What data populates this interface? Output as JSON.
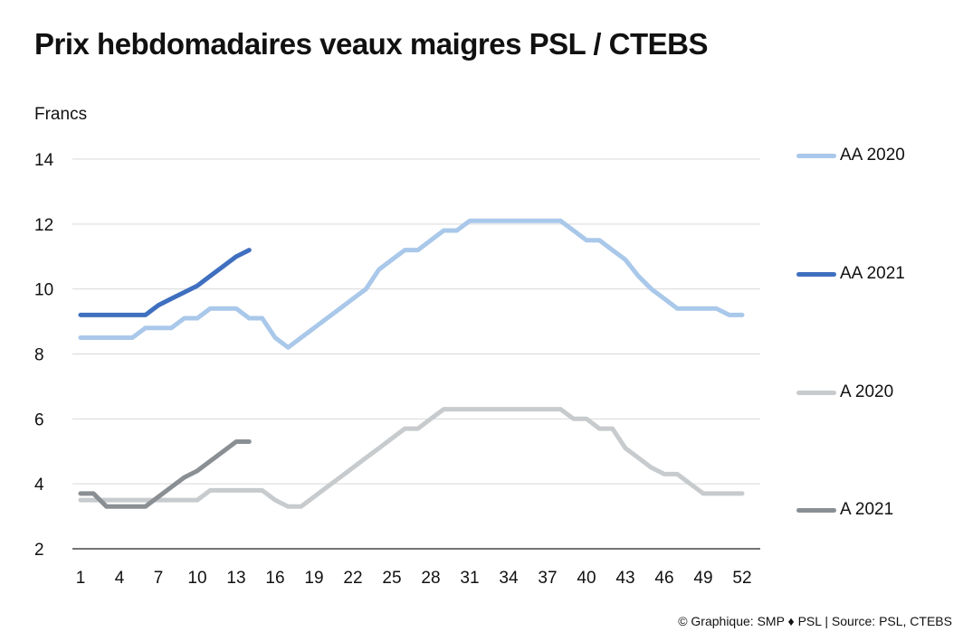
{
  "page": {
    "title": "Prix hebdomadaires veaux maigres PSL / CTEBS",
    "unit_label": "Francs",
    "source": "© Graphique: SMP ♦ PSL | Source: PSL, CTEBS"
  },
  "chart_data": {
    "type": "line",
    "title": "Prix hebdomadaires veaux maigres PSL / CTEBS",
    "ylabel": "Francs",
    "xlabel": "",
    "ylim": [
      2,
      14
    ],
    "yticks": [
      2,
      4,
      6,
      8,
      10,
      12,
      14
    ],
    "xlim": [
      1,
      52
    ],
    "xticks": [
      1,
      4,
      7,
      10,
      13,
      16,
      19,
      22,
      25,
      28,
      31,
      34,
      37,
      40,
      43,
      46,
      49,
      52
    ],
    "grid": true,
    "legend_position": "right",
    "series": [
      {
        "name": "AA 2020",
        "color": "#a9c8ea",
        "x": [
          1,
          2,
          3,
          4,
          5,
          6,
          7,
          8,
          9,
          10,
          11,
          12,
          13,
          14,
          15,
          16,
          17,
          18,
          19,
          20,
          21,
          22,
          23,
          24,
          25,
          26,
          27,
          28,
          29,
          30,
          31,
          32,
          33,
          34,
          35,
          36,
          37,
          38,
          39,
          40,
          41,
          42,
          43,
          44,
          45,
          46,
          47,
          48,
          49,
          50,
          51,
          52
        ],
        "y": [
          8.5,
          8.5,
          8.5,
          8.5,
          8.5,
          8.8,
          8.8,
          8.8,
          9.1,
          9.1,
          9.4,
          9.4,
          9.4,
          9.1,
          9.1,
          8.5,
          8.2,
          8.5,
          8.8,
          9.1,
          9.4,
          9.7,
          10.0,
          10.6,
          10.9,
          11.2,
          11.2,
          11.5,
          11.8,
          11.8,
          12.1,
          12.1,
          12.1,
          12.1,
          12.1,
          12.1,
          12.1,
          12.1,
          11.8,
          11.5,
          11.5,
          11.2,
          10.9,
          10.4,
          10.0,
          9.7,
          9.4,
          9.4,
          9.4,
          9.4,
          9.2,
          9.2
        ]
      },
      {
        "name": "AA 2021",
        "color": "#3f6fbf",
        "x": [
          1,
          2,
          3,
          4,
          5,
          6,
          7,
          8,
          9,
          10,
          11,
          12,
          13,
          14
        ],
        "y": [
          9.2,
          9.2,
          9.2,
          9.2,
          9.2,
          9.2,
          9.5,
          9.7,
          9.9,
          10.1,
          10.4,
          10.7,
          11.0,
          11.2
        ]
      },
      {
        "name": "A 2020",
        "color": "#c7cbce",
        "x": [
          1,
          2,
          3,
          4,
          5,
          6,
          7,
          8,
          9,
          10,
          11,
          12,
          13,
          14,
          15,
          16,
          17,
          18,
          19,
          20,
          21,
          22,
          23,
          24,
          25,
          26,
          27,
          28,
          29,
          30,
          31,
          32,
          33,
          34,
          35,
          36,
          37,
          38,
          39,
          40,
          41,
          42,
          43,
          44,
          45,
          46,
          47,
          48,
          49,
          50,
          51,
          52
        ],
        "y": [
          3.5,
          3.5,
          3.5,
          3.5,
          3.5,
          3.5,
          3.5,
          3.5,
          3.5,
          3.5,
          3.8,
          3.8,
          3.8,
          3.8,
          3.8,
          3.5,
          3.3,
          3.3,
          3.6,
          3.9,
          4.2,
          4.5,
          4.8,
          5.1,
          5.4,
          5.7,
          5.7,
          6.0,
          6.3,
          6.3,
          6.3,
          6.3,
          6.3,
          6.3,
          6.3,
          6.3,
          6.3,
          6.3,
          6.0,
          6.0,
          5.7,
          5.7,
          5.1,
          4.8,
          4.5,
          4.3,
          4.3,
          4.0,
          3.7,
          3.7,
          3.7,
          3.7
        ]
      },
      {
        "name": "A 2021",
        "color": "#8a8f94",
        "x": [
          1,
          2,
          3,
          4,
          5,
          6,
          7,
          8,
          9,
          10,
          11,
          12,
          13,
          14
        ],
        "y": [
          3.7,
          3.7,
          3.3,
          3.3,
          3.3,
          3.3,
          3.6,
          3.9,
          4.2,
          4.4,
          4.7,
          5.0,
          5.3,
          5.3
        ]
      }
    ]
  }
}
